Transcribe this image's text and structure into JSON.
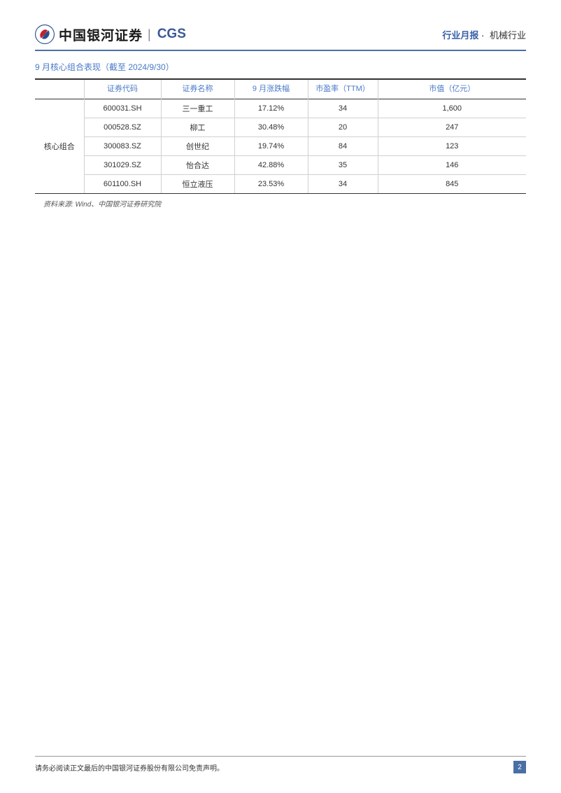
{
  "header": {
    "company_name": "中国银河证券",
    "company_abbr": "CGS",
    "report_type": "行业月报",
    "separator": "·",
    "industry": "机械行业"
  },
  "section": {
    "title": "9 月核心组合表现（截至 2024/9/30）"
  },
  "table": {
    "columns": [
      "",
      "证券代码",
      "证券名称",
      "9 月涨跌幅",
      "市盈率（TTM）",
      "市值（亿元）"
    ],
    "group_label": "核心组合",
    "rows": [
      [
        "600031.SH",
        "三一重工",
        "17.12%",
        "34",
        "1,600"
      ],
      [
        "000528.SZ",
        "柳工",
        "30.48%",
        "20",
        "247"
      ],
      [
        "300083.SZ",
        "创世纪",
        "19.74%",
        "84",
        "123"
      ],
      [
        "301029.SZ",
        "怡合达",
        "42.88%",
        "35",
        "146"
      ],
      [
        "601100.SH",
        "恒立液压",
        "23.53%",
        "34",
        "845"
      ]
    ],
    "column_widths": [
      "70px",
      "110px",
      "105px",
      "105px",
      "100px",
      "auto"
    ],
    "header_color": "#4a7ac7",
    "border_color": "#d0d0d0",
    "heavy_border_color": "#333333",
    "text_color": "#333333"
  },
  "source": {
    "text": "资料来源: Wind、中国银河证券研究院"
  },
  "footer": {
    "disclaimer": "请务必阅读正文最后的中国银河证券股份有限公司免责声明。",
    "page_number": "2"
  },
  "colors": {
    "accent_blue": "#4a6fa5",
    "link_blue": "#4a7ac7",
    "header_blue": "#3a5fa8",
    "cgs_blue": "#3b5998",
    "background": "#ffffff"
  }
}
